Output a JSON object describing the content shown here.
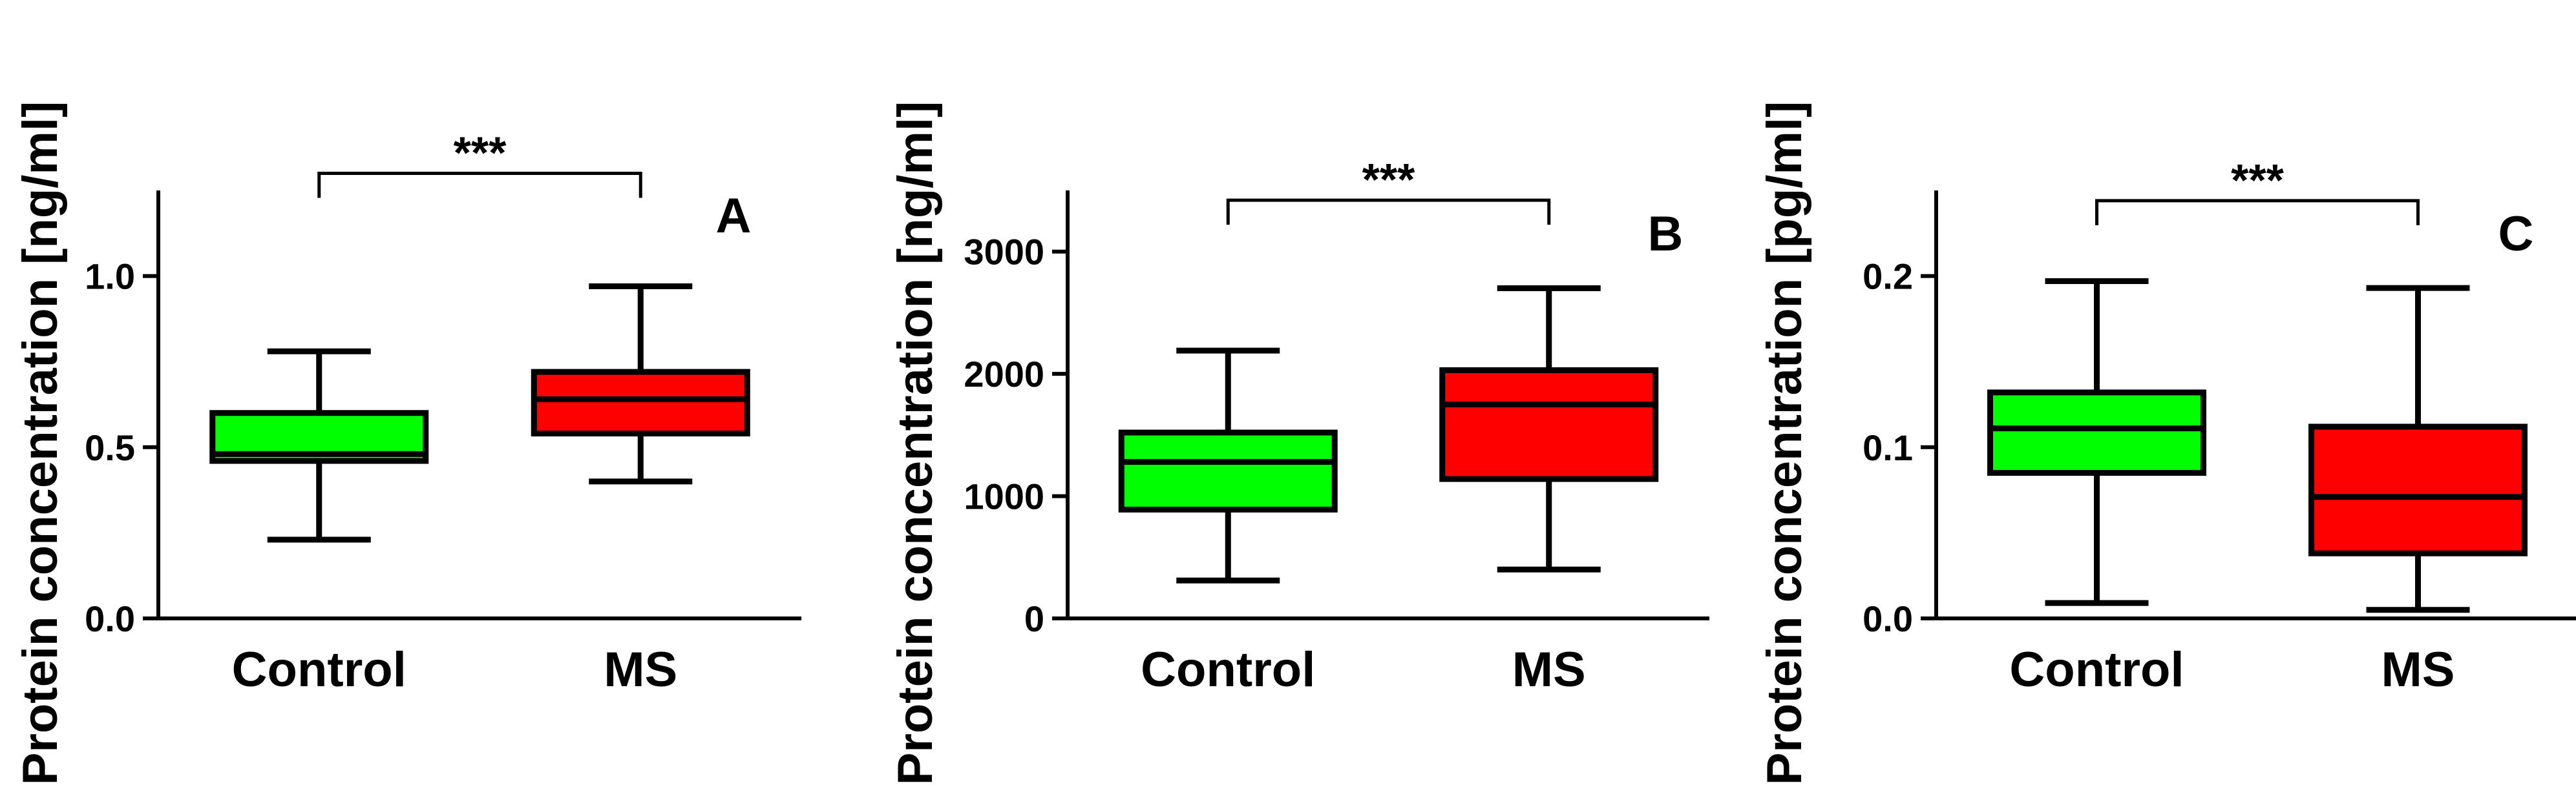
{
  "chart_data": [
    {
      "type": "box",
      "panel_label": "A",
      "ylabel": "Protein concentration [ng/ml]",
      "categories": [
        "Control",
        "MS"
      ],
      "colors": [
        "#00ff00",
        "#ff0000"
      ],
      "ylim": [
        0,
        1.25
      ],
      "yticks": [
        0.0,
        0.5,
        1.0
      ],
      "ytick_labels": [
        "0.0",
        "0.5",
        "1.0"
      ],
      "boxes": [
        {
          "whisker_low": 0.23,
          "q1": 0.46,
          "median": 0.48,
          "q3": 0.6,
          "whisker_high": 0.78
        },
        {
          "whisker_low": 0.4,
          "q1": 0.54,
          "median": 0.64,
          "q3": 0.72,
          "whisker_high": 0.97
        }
      ],
      "significance": {
        "text": "***",
        "between": [
          0,
          1
        ],
        "y": 1.3
      },
      "grid": false
    },
    {
      "type": "box",
      "panel_label": "B",
      "ylabel": "Protein concentration [ng/ml]",
      "categories": [
        "Control",
        "MS"
      ],
      "colors": [
        "#00ff00",
        "#ff0000"
      ],
      "ylim": [
        0,
        3500
      ],
      "yticks": [
        0,
        1000,
        2000,
        3000
      ],
      "ytick_labels": [
        "0",
        "1000",
        "2000",
        "3000"
      ],
      "boxes": [
        {
          "whisker_low": 310,
          "q1": 890,
          "median": 1280,
          "q3": 1520,
          "whisker_high": 2190
        },
        {
          "whisker_low": 400,
          "q1": 1140,
          "median": 1750,
          "q3": 2030,
          "whisker_high": 2700
        }
      ],
      "significance": {
        "text": "***",
        "between": [
          0,
          1
        ],
        "y": 3420
      },
      "grid": false
    },
    {
      "type": "box",
      "panel_label": "C",
      "ylabel": "Protein concentration [pg/ml]",
      "categories": [
        "Control",
        "MS"
      ],
      "colors": [
        "#00ff00",
        "#ff0000"
      ],
      "ylim": [
        0,
        0.25
      ],
      "yticks": [
        0.0,
        0.1,
        0.2
      ],
      "ytick_labels": [
        "0.0",
        "0.1",
        "0.2"
      ],
      "boxes": [
        {
          "whisker_low": 0.009,
          "q1": 0.085,
          "median": 0.111,
          "q3": 0.132,
          "whisker_high": 0.197
        },
        {
          "whisker_low": 0.005,
          "q1": 0.038,
          "median": 0.071,
          "q3": 0.112,
          "whisker_high": 0.193
        }
      ],
      "significance": {
        "text": "***",
        "between": [
          0,
          1
        ],
        "y": 0.244
      },
      "grid": false
    }
  ]
}
